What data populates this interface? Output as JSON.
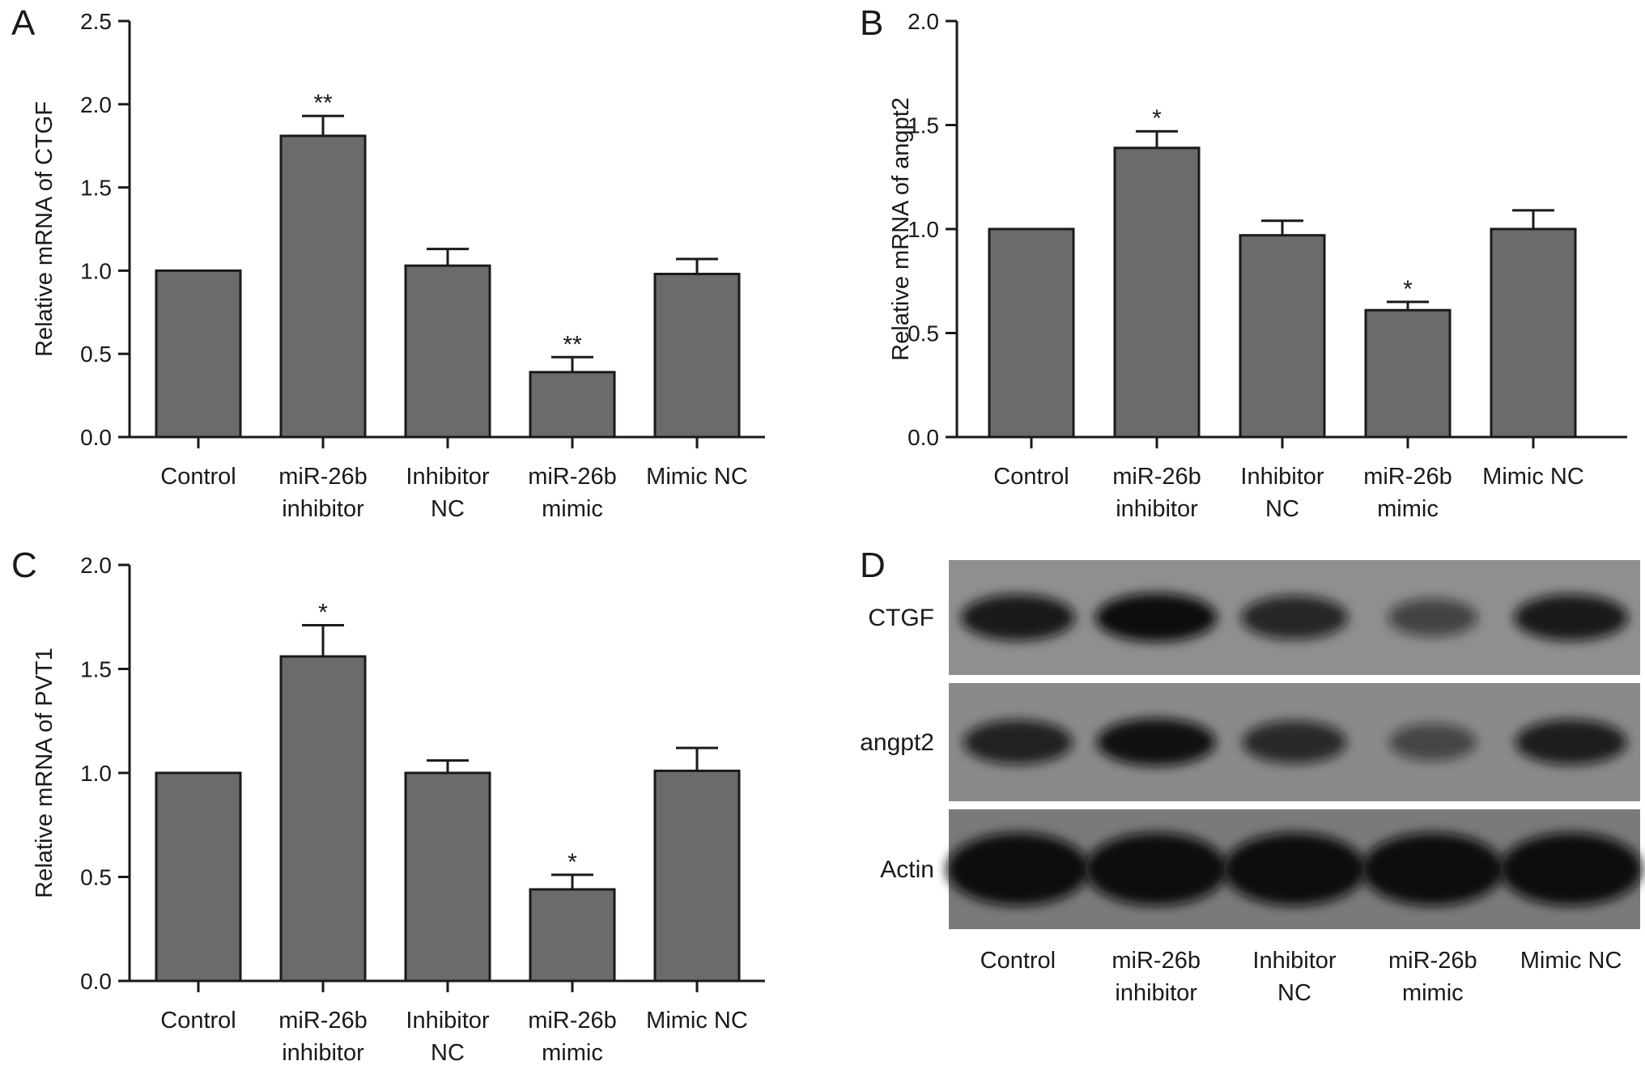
{
  "chart_data": [
    {
      "type": "bar",
      "panel": "A",
      "categories": [
        [
          "Control"
        ],
        [
          "miR-26b",
          "inhibitor"
        ],
        [
          "Inhibitor",
          "NC"
        ],
        [
          "miR-26b",
          "mimic"
        ],
        [
          "Mimic NC"
        ]
      ],
      "values": [
        1.0,
        1.81,
        1.03,
        0.39,
        0.98
      ],
      "errors": [
        0,
        0.12,
        0.1,
        0.09,
        0.09
      ],
      "significance": [
        "",
        "**",
        "",
        "**",
        ""
      ],
      "ylabel": "Relative mRNA of CTGF",
      "ylim": [
        0,
        2.5
      ],
      "yticks": [
        "0.0",
        "0.5",
        "1.0",
        "1.5",
        "2.0",
        "2.5"
      ],
      "bar_color": "#6b6b6b"
    },
    {
      "type": "bar",
      "panel": "B",
      "categories": [
        [
          "Control"
        ],
        [
          "miR-26b",
          "inhibitor"
        ],
        [
          "Inhibitor",
          "NC"
        ],
        [
          "miR-26b",
          "mimic"
        ],
        [
          "Mimic NC"
        ]
      ],
      "values": [
        1.0,
        1.39,
        0.97,
        0.61,
        1.0
      ],
      "errors": [
        0,
        0.08,
        0.07,
        0.04,
        0.09
      ],
      "significance": [
        "",
        "*",
        "",
        "*",
        ""
      ],
      "ylabel": "Relative mRNA of angpt2",
      "ylim": [
        0,
        2.0
      ],
      "yticks": [
        "0.0",
        "0.5",
        "1.0",
        "1.5",
        "2.0"
      ],
      "bar_color": "#6b6b6b"
    },
    {
      "type": "bar",
      "panel": "C",
      "categories": [
        [
          "Control"
        ],
        [
          "miR-26b",
          "inhibitor"
        ],
        [
          "Inhibitor",
          "NC"
        ],
        [
          "miR-26b",
          "mimic"
        ],
        [
          "Mimic NC"
        ]
      ],
      "values": [
        1.0,
        1.56,
        1.0,
        0.44,
        1.01
      ],
      "errors": [
        0,
        0.15,
        0.06,
        0.07,
        0.11
      ],
      "significance": [
        "",
        "*",
        "",
        "*",
        ""
      ],
      "ylabel": "Relative mRNA of PVT1",
      "ylim": [
        0,
        2.0
      ],
      "yticks": [
        "0.0",
        "0.5",
        "1.0",
        "1.5",
        "2.0"
      ],
      "bar_color": "#6b6b6b"
    }
  ],
  "panel_labels": {
    "a": "A",
    "b": "B",
    "c": "C",
    "d": "D"
  },
  "western_blot": {
    "rows": [
      "CTGF",
      "angpt2",
      "Actin"
    ],
    "lanes": [
      [
        "Control"
      ],
      [
        "miR-26b",
        "inhibitor"
      ],
      [
        "Inhibitor",
        "NC"
      ],
      [
        "miR-26b",
        "mimic"
      ],
      [
        "Mimic NC"
      ]
    ],
    "band_intensity": {
      "CTGF": [
        0.85,
        1.0,
        0.7,
        0.35,
        0.85
      ],
      "angpt2": [
        0.75,
        0.95,
        0.65,
        0.3,
        0.8
      ],
      "Actin": [
        1.0,
        1.0,
        1.0,
        1.0,
        1.0
      ]
    }
  }
}
